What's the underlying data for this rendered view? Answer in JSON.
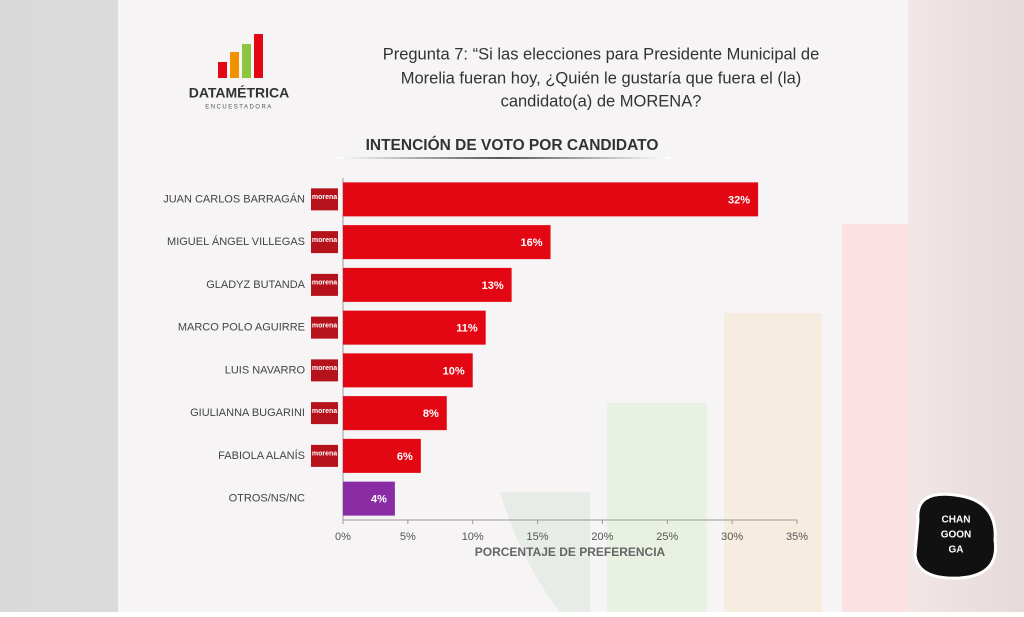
{
  "logo": {
    "name": "DATAMÉTRICA",
    "tagline": "ENCUESTADORA"
  },
  "question_lines": [
    "Pregunta 7: “Si las elecciones para Presidente Municipal de",
    "Morelia fueran hoy, ¿Quién le gustaría que fuera el (la)",
    "candidato(a) de MORENA?"
  ],
  "watermark": [
    "CHAN",
    "GOON",
    "GA"
  ],
  "chart_data": {
    "type": "bar",
    "orientation": "horizontal",
    "title": "INTENCIÓN DE VOTO POR CANDIDATO",
    "x_label": "PORCENTAJE DE PREFERENCIA",
    "badge": "morena",
    "categories": [
      "JUAN CARLOS BARRAGÁN",
      "MIGUEL ÁNGEL VILLEGAS",
      "GLADYZ BUTANDA",
      "MARCO POLO AGUIRRE",
      "LUIS NAVARRO",
      "GIULIANNA BUGARINI",
      "FABIOLA ALANÍS",
      "OTROS/NS/NC"
    ],
    "badged": [
      true,
      true,
      true,
      true,
      true,
      true,
      true,
      false
    ],
    "values": [
      32,
      16,
      13,
      11,
      10,
      8,
      6,
      4
    ],
    "value_labels": [
      "32%",
      "16%",
      "13%",
      "11%",
      "10%",
      "8%",
      "6%",
      "4%"
    ],
    "colors": [
      "#e30613",
      "#e30613",
      "#e30613",
      "#e30613",
      "#e30613",
      "#e30613",
      "#e30613",
      "#8a2ca3"
    ],
    "xlim": [
      0,
      35
    ],
    "xticks": [
      {
        "value": 0,
        "label": "0%"
      },
      {
        "value": 5,
        "label": "5%"
      },
      {
        "value": 10,
        "label": "10%"
      },
      {
        "value": 15,
        "label": "15%"
      },
      {
        "value": 20,
        "label": "20%"
      },
      {
        "value": 25,
        "label": "25%"
      },
      {
        "value": 30,
        "label": "30%"
      },
      {
        "value": 35,
        "label": "35%"
      }
    ]
  }
}
